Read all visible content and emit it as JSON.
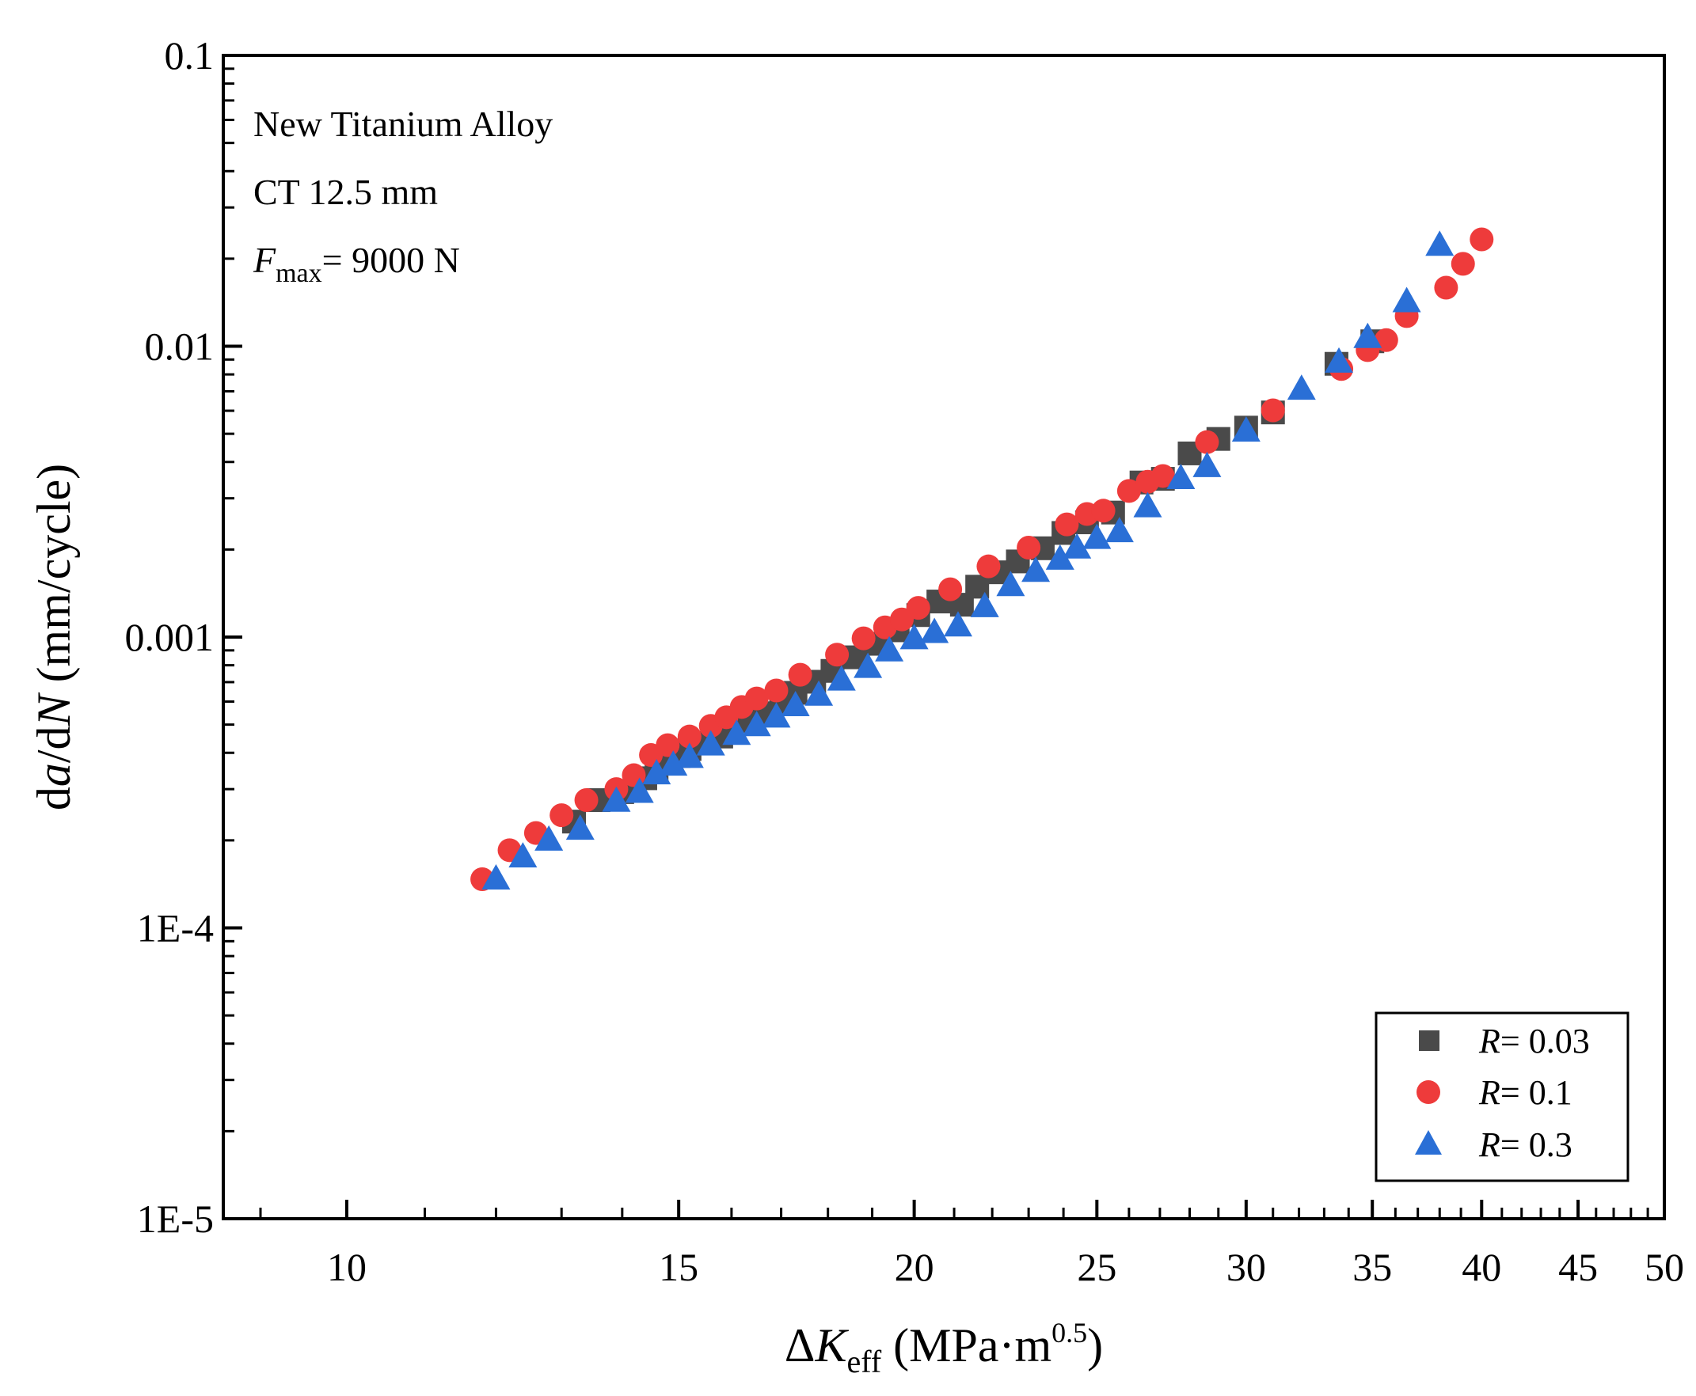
{
  "chart_data": {
    "type": "scatter",
    "xscale": "log",
    "yscale": "log",
    "xlim": [
      8.6,
      50
    ],
    "ylim": [
      1e-05,
      0.1
    ],
    "xticks": [
      {
        "value": 10,
        "label": "10"
      },
      {
        "value": 15,
        "label": "15"
      },
      {
        "value": 20,
        "label": "20"
      },
      {
        "value": 25,
        "label": "25"
      },
      {
        "value": 30,
        "label": "30"
      },
      {
        "value": 35,
        "label": "35"
      },
      {
        "value": 40,
        "label": "40"
      },
      {
        "value": 45,
        "label": "45"
      },
      {
        "value": 50,
        "label": "50"
      }
    ],
    "yticks": [
      {
        "value": 1e-05,
        "label": "1E-5"
      },
      {
        "value": 0.0001,
        "label": "1E-4"
      },
      {
        "value": 0.001,
        "label": "0.001"
      },
      {
        "value": 0.01,
        "label": "0.01"
      },
      {
        "value": 0.1,
        "label": "0.1"
      }
    ],
    "xlabel": {
      "delta": "Δ",
      "symbol": "K",
      "subscript": "eff",
      "unit_open": " (MPa·m",
      "superscript": "0.5",
      "unit_close": ")"
    },
    "ylabel": {
      "d1": "d",
      "a": "a",
      "slash_d": "/d",
      "N": "N",
      "unit": " (mm/cycle)"
    },
    "annotations": {
      "material": "New Titanium Alloy",
      "specimen": "CT 12.5 mm",
      "force_symbol": "F",
      "force_subscript": "max",
      "force_value": "= 9000 N"
    },
    "legend_position": "bottom-right",
    "series": [
      {
        "name": "R = 0.03",
        "legend_symbol": "R",
        "legend_value": "= 0.03",
        "marker": "square",
        "color": "#4a4a4a",
        "points": [
          [
            13.2,
            0.000232
          ],
          [
            13.6,
            0.000275
          ],
          [
            14.0,
            0.000293
          ],
          [
            14.4,
            0.000327
          ],
          [
            14.6,
            0.000352
          ],
          [
            14.8,
            0.00037
          ],
          [
            15.0,
            0.00039
          ],
          [
            15.2,
            0.000412
          ],
          [
            15.5,
            0.000432
          ],
          [
            15.8,
            0.000455
          ],
          [
            16.0,
            0.000478
          ],
          [
            16.3,
            0.000515
          ],
          [
            16.6,
            0.000547
          ],
          [
            17.0,
            0.0006
          ],
          [
            17.3,
            0.000643
          ],
          [
            17.7,
            0.000702
          ],
          [
            18.1,
            0.000765
          ],
          [
            18.6,
            0.000852
          ],
          [
            19.1,
            0.000948
          ],
          [
            19.6,
            0.001055
          ],
          [
            20.1,
            0.00119
          ],
          [
            20.6,
            0.001325
          ],
          [
            21.2,
            0.001292
          ],
          [
            21.6,
            0.00149
          ],
          [
            22.2,
            0.00167
          ],
          [
            22.7,
            0.00182
          ],
          [
            23.4,
            0.00202
          ],
          [
            24.0,
            0.00228
          ],
          [
            24.7,
            0.00248
          ],
          [
            25.5,
            0.00268
          ],
          [
            26.4,
            0.0034
          ],
          [
            27.1,
            0.0035
          ],
          [
            28.0,
            0.00428
          ],
          [
            29.0,
            0.0048
          ],
          [
            30.0,
            0.00525
          ],
          [
            31.0,
            0.00592
          ],
          [
            33.5,
            0.0087
          ],
          [
            35.0,
            0.0104
          ]
        ]
      },
      {
        "name": "R = 0.1",
        "legend_symbol": "R",
        "legend_value": "= 0.1",
        "marker": "circle",
        "color": "#ee3b3b",
        "points": [
          [
            11.8,
            0.000147
          ],
          [
            12.2,
            0.000185
          ],
          [
            12.6,
            0.000212
          ],
          [
            13.0,
            0.000244
          ],
          [
            13.4,
            0.000275
          ],
          [
            13.9,
            0.0003
          ],
          [
            14.2,
            0.000335
          ],
          [
            14.5,
            0.000393
          ],
          [
            14.8,
            0.000425
          ],
          [
            15.2,
            0.000455
          ],
          [
            15.6,
            0.000495
          ],
          [
            15.9,
            0.00053
          ],
          [
            16.2,
            0.000575
          ],
          [
            16.5,
            0.000615
          ],
          [
            16.9,
            0.000655
          ],
          [
            17.4,
            0.000742
          ],
          [
            18.2,
            0.00087
          ],
          [
            18.8,
            0.00099
          ],
          [
            19.3,
            0.00108
          ],
          [
            19.7,
            0.00115
          ],
          [
            20.1,
            0.00126
          ],
          [
            20.9,
            0.00146
          ],
          [
            21.9,
            0.00175
          ],
          [
            23.0,
            0.00203
          ],
          [
            24.1,
            0.00244
          ],
          [
            24.7,
            0.00265
          ],
          [
            25.2,
            0.00272
          ],
          [
            26.0,
            0.00318
          ],
          [
            26.6,
            0.00342
          ],
          [
            27.1,
            0.00358
          ],
          [
            28.6,
            0.00468
          ],
          [
            31.0,
            0.00602
          ],
          [
            33.7,
            0.00835
          ],
          [
            34.8,
            0.0097
          ],
          [
            35.6,
            0.0105
          ],
          [
            36.5,
            0.0127
          ],
          [
            38.3,
            0.0159
          ],
          [
            39.1,
            0.0192
          ],
          [
            40.0,
            0.0233
          ]
        ]
      },
      {
        "name": "R = 0.3",
        "legend_symbol": "R",
        "legend_value": "= 0.3",
        "marker": "triangle",
        "color": "#2a6fd6",
        "points": [
          [
            12.0,
            0.000147
          ],
          [
            12.4,
            0.000175
          ],
          [
            12.8,
            0.0002
          ],
          [
            13.3,
            0.000218
          ],
          [
            13.9,
            0.000272
          ],
          [
            14.3,
            0.000292
          ],
          [
            14.6,
            0.000338
          ],
          [
            14.9,
            0.000362
          ],
          [
            15.2,
            0.000385
          ],
          [
            15.6,
            0.000425
          ],
          [
            16.1,
            0.000462
          ],
          [
            16.5,
            0.000495
          ],
          [
            16.9,
            0.00053
          ],
          [
            17.3,
            0.00058
          ],
          [
            17.8,
            0.00063
          ],
          [
            18.3,
            0.00071
          ],
          [
            18.9,
            0.000785
          ],
          [
            19.4,
            0.000895
          ],
          [
            20.0,
            0.000985
          ],
          [
            20.5,
            0.001035
          ],
          [
            21.1,
            0.00109
          ],
          [
            21.8,
            0.00127
          ],
          [
            22.5,
            0.0015
          ],
          [
            23.2,
            0.00168
          ],
          [
            23.9,
            0.00185
          ],
          [
            24.4,
            0.00202
          ],
          [
            25.0,
            0.00218
          ],
          [
            25.7,
            0.0023
          ],
          [
            26.6,
            0.0028
          ],
          [
            27.7,
            0.0035
          ],
          [
            28.6,
            0.00385
          ],
          [
            30.0,
            0.0051
          ],
          [
            32.1,
            0.0071
          ],
          [
            33.6,
            0.0088
          ],
          [
            34.8,
            0.0107
          ],
          [
            36.5,
            0.0142
          ],
          [
            38.0,
            0.0222
          ]
        ]
      }
    ]
  }
}
